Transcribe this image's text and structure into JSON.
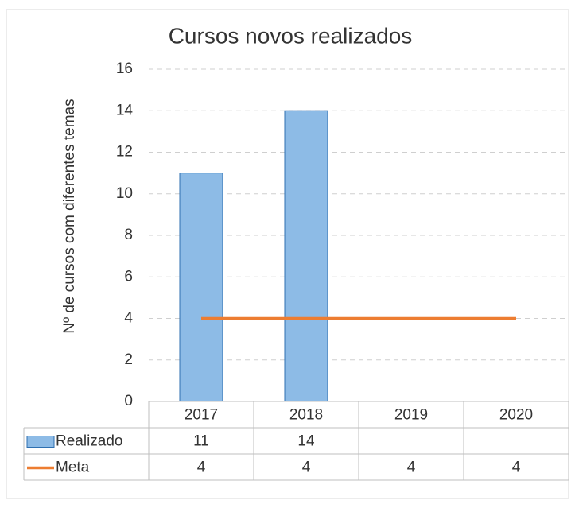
{
  "chart_data": {
    "type": "bar",
    "title": "Cursos novos realizados",
    "y_label": "Nº de cursos  com diferentes temas",
    "categories": [
      "2017",
      "2018",
      "2019",
      "2020"
    ],
    "series": [
      {
        "name": "Realizado",
        "type": "bar",
        "color": "#8dbbe6",
        "values": [
          11,
          14,
          null,
          null
        ]
      },
      {
        "name": "Meta",
        "type": "line",
        "color": "#ed7d31",
        "values": [
          4,
          4,
          4,
          4
        ]
      }
    ],
    "ylim": [
      0,
      16
    ],
    "yticks": [
      0,
      2,
      4,
      6,
      8,
      10,
      12,
      14,
      16
    ],
    "grid": true,
    "data_table": true
  }
}
